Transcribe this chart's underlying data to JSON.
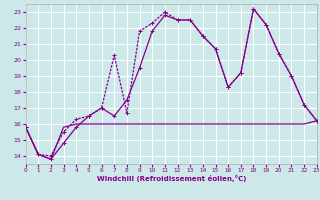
{
  "bg_color": "#cce8e8",
  "grid_color": "#ffffff",
  "line_color": "#880088",
  "xlim": [
    0,
    23
  ],
  "ylim": [
    13.5,
    23.5
  ],
  "xticks": [
    0,
    1,
    2,
    3,
    4,
    5,
    6,
    7,
    8,
    9,
    10,
    11,
    12,
    13,
    14,
    15,
    16,
    17,
    18,
    19,
    20,
    21,
    22,
    23
  ],
  "yticks": [
    14,
    15,
    16,
    17,
    18,
    19,
    20,
    21,
    22,
    23
  ],
  "xlabel": "Windchill (Refroidissement éolien,°C)",
  "series_flat_x": [
    0,
    1,
    2,
    3,
    4,
    5,
    6,
    7,
    8,
    9,
    10,
    11,
    12,
    13,
    14,
    15,
    16,
    17,
    18,
    19,
    20,
    21,
    22,
    23
  ],
  "series_flat_y": [
    15.8,
    14.1,
    13.8,
    15.8,
    16.0,
    16.0,
    16.0,
    16.0,
    16.0,
    16.0,
    16.0,
    16.0,
    16.0,
    16.0,
    16.0,
    16.0,
    16.0,
    16.0,
    16.0,
    16.0,
    16.0,
    16.0,
    16.0,
    16.2
  ],
  "series_a_x": [
    0,
    1,
    2,
    3,
    4,
    5,
    6,
    7,
    8,
    9,
    10,
    11,
    12,
    13,
    14,
    15,
    16,
    17,
    18,
    19,
    20,
    21,
    22,
    23
  ],
  "series_a_y": [
    15.8,
    14.1,
    13.8,
    14.8,
    15.8,
    16.5,
    17.0,
    16.5,
    17.5,
    19.5,
    21.8,
    22.8,
    22.5,
    22.5,
    21.5,
    20.7,
    18.3,
    19.2,
    23.2,
    22.2,
    20.4,
    19.0,
    17.2,
    16.2
  ],
  "series_b_x": [
    0,
    1,
    2,
    3,
    4,
    5,
    6,
    7,
    8,
    9,
    10,
    11,
    12,
    13,
    14,
    15,
    16,
    17,
    18,
    19,
    20,
    21,
    22,
    23
  ],
  "series_b_y": [
    15.8,
    14.1,
    14.0,
    15.5,
    16.3,
    16.5,
    17.0,
    20.3,
    16.7,
    21.8,
    22.3,
    23.0,
    22.5,
    22.5,
    21.5,
    20.7,
    18.3,
    19.2,
    23.2,
    22.2,
    20.4,
    19.0,
    17.2,
    16.2
  ]
}
